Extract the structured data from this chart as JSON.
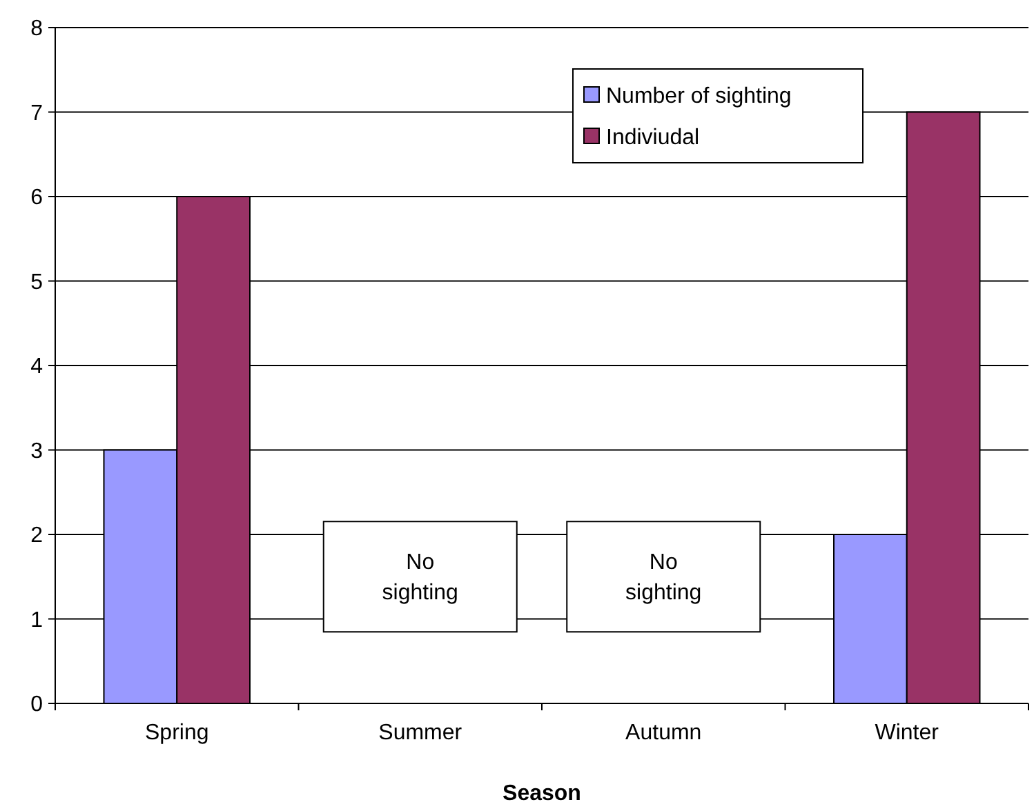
{
  "chart_data": {
    "type": "bar",
    "xlabel": "Season",
    "categories": [
      "Spring",
      "Summer",
      "Autumn",
      "Winter"
    ],
    "series": [
      {
        "name": "Number of sighting",
        "color": "#9999ff",
        "values": [
          3,
          0,
          0,
          2
        ]
      },
      {
        "name": "Indiviudal",
        "color": "#993366",
        "values": [
          6,
          0,
          0,
          7
        ]
      }
    ],
    "ylim": [
      0,
      8
    ],
    "yticks": [
      0,
      1,
      2,
      3,
      4,
      5,
      6,
      7,
      8
    ],
    "grid": "y",
    "legend": "top right",
    "annotations": [
      "No sighting",
      "No sighting"
    ]
  }
}
